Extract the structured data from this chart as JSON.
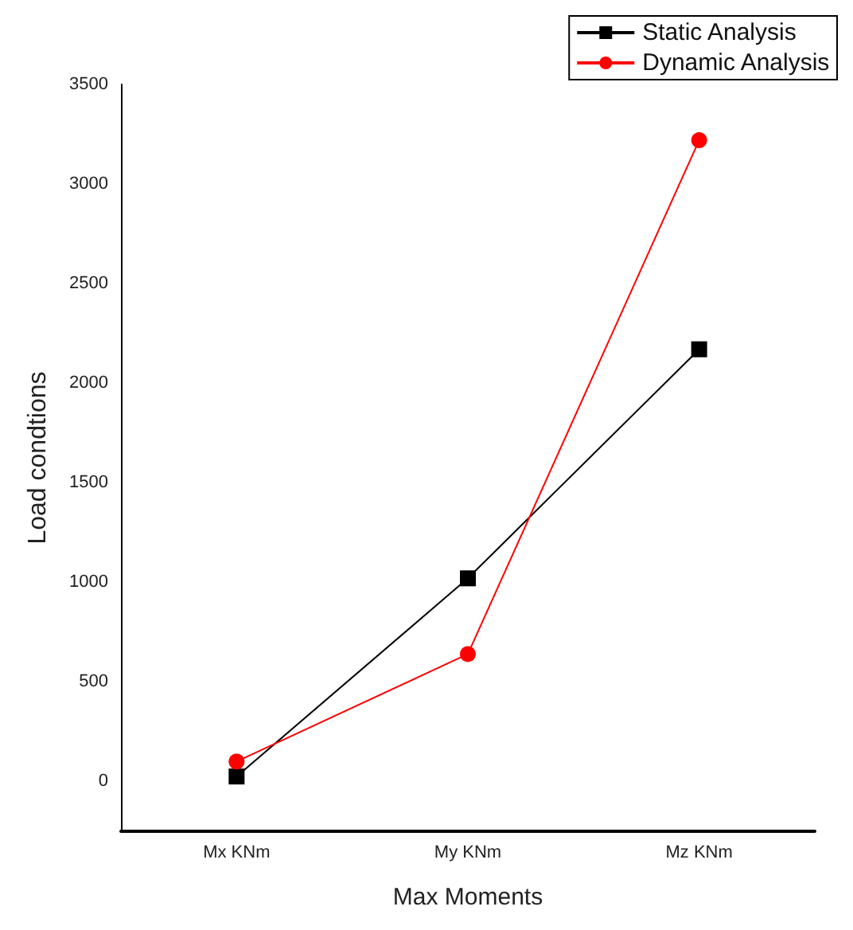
{
  "chart_data": {
    "type": "line",
    "xlabel": "Max Moments",
    "ylabel": "Load condtions",
    "categories": [
      "Mx KNm",
      "My KNm",
      "Mz KNm"
    ],
    "series": [
      {
        "name": "Static Analysis",
        "color": "#000000",
        "marker": "square",
        "values": [
          25,
          1020,
          2170
        ]
      },
      {
        "name": "Dynamic Analysis",
        "color": "#ff0000",
        "marker": "circle",
        "values": [
          100,
          640,
          3220
        ]
      }
    ],
    "ylim": [
      -250,
      3500
    ],
    "yticks": [
      0,
      500,
      1000,
      1500,
      2000,
      2500,
      3000,
      3500
    ],
    "grid": false,
    "legend": "top right"
  }
}
